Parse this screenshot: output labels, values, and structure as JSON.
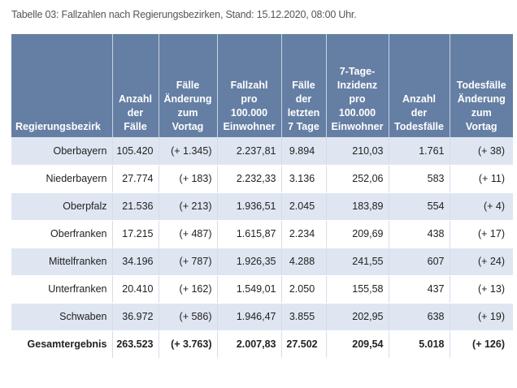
{
  "caption": "Tabelle 03: Fallzahlen nach Regierungsbezirken, Stand: 15.12.2020, 08:00 Uhr.",
  "columns": [
    [
      "Regierungsbezirk"
    ],
    [
      "Anzahl",
      "der",
      "Fälle"
    ],
    [
      "Fälle",
      "Änderung",
      "zum",
      "Vortag"
    ],
    [
      "Fallzahl",
      "pro",
      "100.000",
      "Einwohner"
    ],
    [
      "Fälle",
      "der",
      "letzten",
      "7 Tage"
    ],
    [
      "7-Tage-",
      "Inzidenz",
      "pro",
      "100.000",
      "Einwohner"
    ],
    [
      "Anzahl",
      "der",
      "Todesfälle"
    ],
    [
      "Todesfälle",
      "Änderung",
      "zum",
      "Vortag"
    ]
  ],
  "rows": [
    [
      "Oberbayern",
      "105.420",
      "(+ 1.345)",
      "2.237,81",
      "9.894",
      "210,03",
      "1.761",
      "(+ 38)"
    ],
    [
      "Niederbayern",
      "27.774",
      "(+ 183)",
      "2.232,33",
      "3.136",
      "252,06",
      "583",
      "(+ 11)"
    ],
    [
      "Oberpfalz",
      "21.536",
      "(+ 213)",
      "1.936,51",
      "2.045",
      "183,89",
      "554",
      "(+ 4)"
    ],
    [
      "Oberfranken",
      "17.215",
      "(+ 487)",
      "1.615,87",
      "2.234",
      "209,69",
      "438",
      "(+ 17)"
    ],
    [
      "Mittelfranken",
      "34.196",
      "(+ 787)",
      "1.926,35",
      "4.288",
      "241,55",
      "607",
      "(+ 24)"
    ],
    [
      "Unterfranken",
      "20.410",
      "(+ 162)",
      "1.549,01",
      "2.050",
      "155,58",
      "437",
      "(+ 13)"
    ],
    [
      "Schwaben",
      "36.972",
      "(+ 586)",
      "1.946,47",
      "3.855",
      "202,95",
      "638",
      "(+ 19)"
    ]
  ],
  "total": [
    "Gesamtergebnis",
    "263.523",
    "(+ 3.763)",
    "2.007,83",
    "27.502",
    "209,54",
    "5.018",
    "(+ 126)"
  ],
  "colors": {
    "header_bg": "#657fa4",
    "stripe_bg": "#dfe6f1"
  }
}
